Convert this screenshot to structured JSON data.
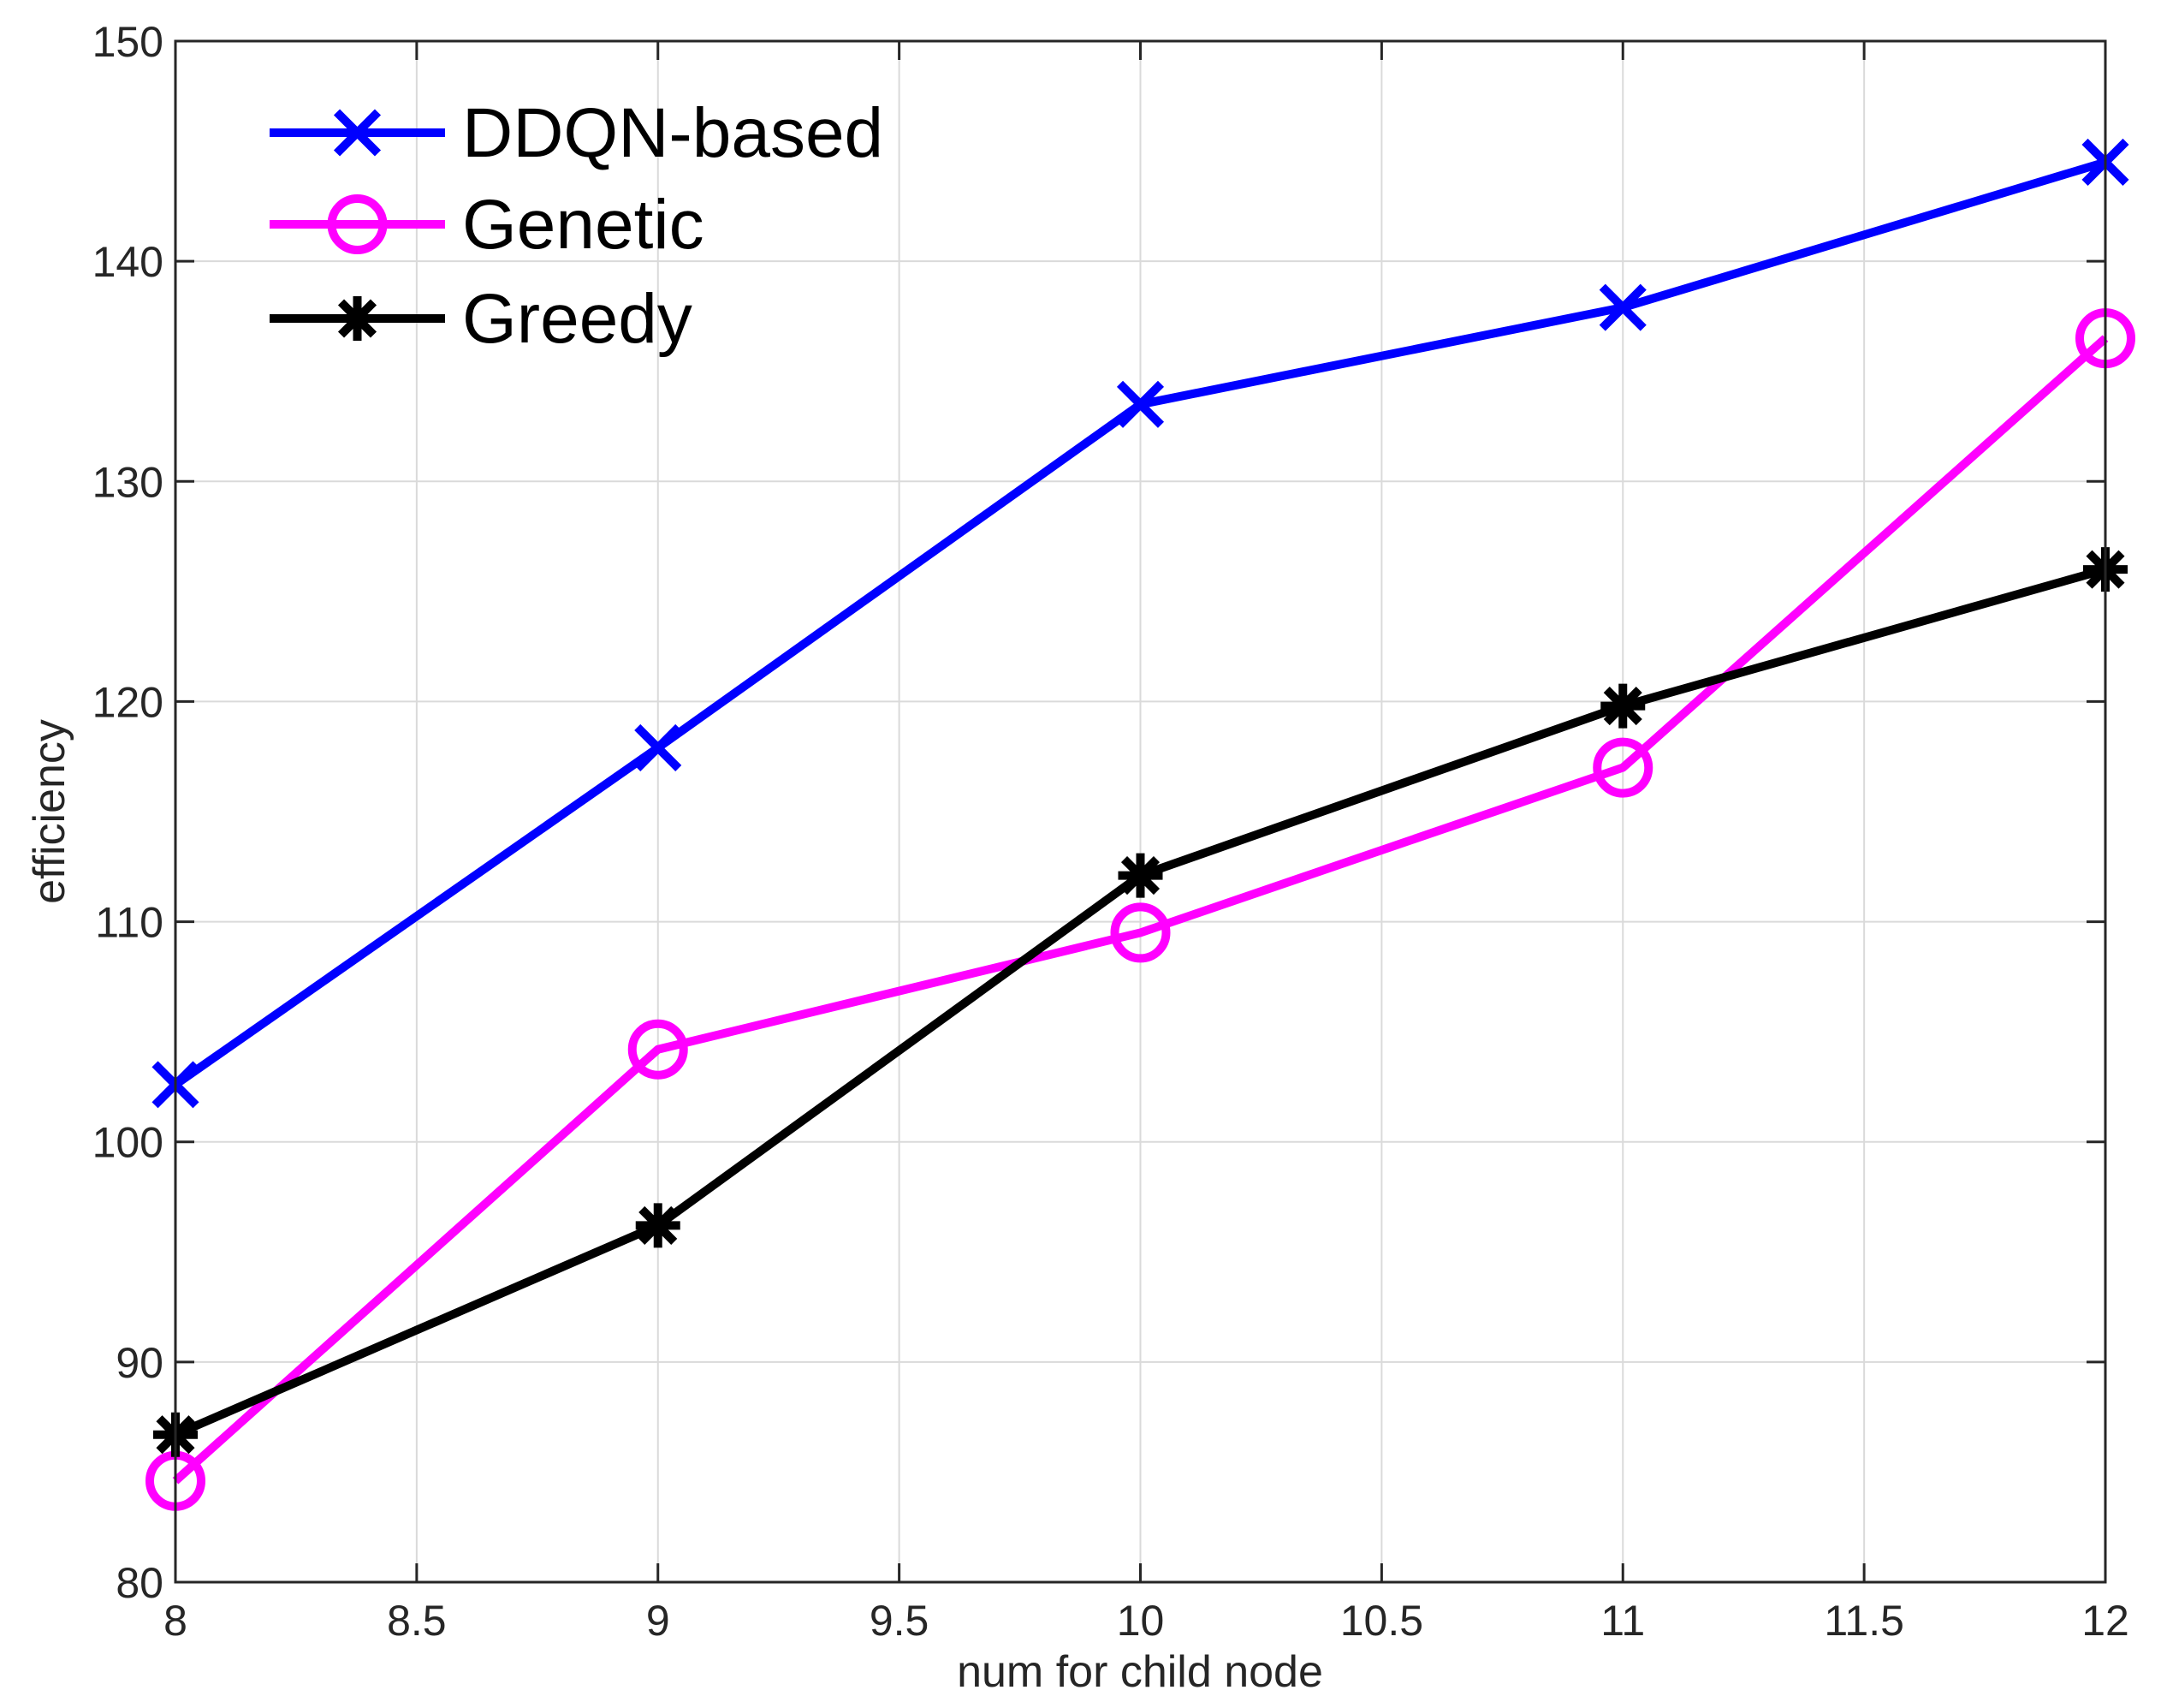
{
  "chart_data": {
    "type": "line",
    "title": "",
    "xlabel": "num for child node",
    "ylabel": "efficiency",
    "xlim": [
      8,
      12
    ],
    "ylim": [
      80,
      150
    ],
    "grid": true,
    "legend_position": "top-left",
    "xticks": [
      8,
      8.5,
      9,
      9.5,
      10,
      10.5,
      11,
      11.5,
      12
    ],
    "xtick_labels": [
      "8",
      "8.5",
      "9",
      "9.5",
      "10",
      "10.5",
      "11",
      "11.5",
      "12"
    ],
    "yticks": [
      80,
      90,
      100,
      110,
      120,
      130,
      140,
      150
    ],
    "ytick_labels": [
      "80",
      "90",
      "100",
      "110",
      "120",
      "130",
      "140",
      "150"
    ],
    "x": [
      8,
      9,
      10,
      11,
      12
    ],
    "series": [
      {
        "name": "DDQN-based",
        "color": "#0000ff",
        "marker": "x",
        "values": [
          102.6,
          117.9,
          133.5,
          137.9,
          144.5
        ]
      },
      {
        "name": "Genetic",
        "color": "#ff00ff",
        "marker": "o",
        "values": [
          84.6,
          104.2,
          109.5,
          117.0,
          136.5
        ]
      },
      {
        "name": "Greedy",
        "color": "#000000",
        "marker": "asterisk",
        "values": [
          86.7,
          96.2,
          112.1,
          119.8,
          126.0
        ]
      }
    ]
  }
}
